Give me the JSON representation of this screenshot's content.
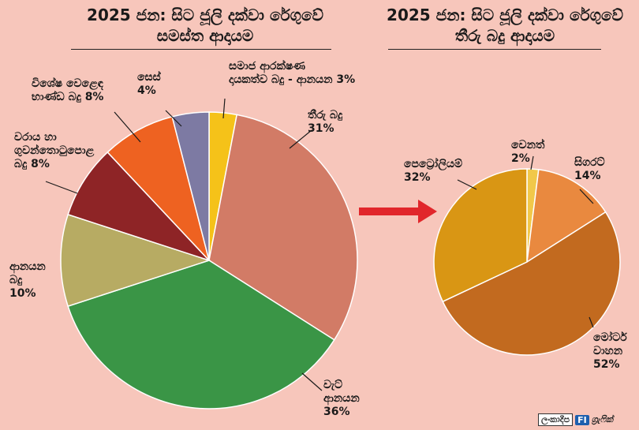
{
  "titles": {
    "left": {
      "line1": "2025 ජන: සිට ජූලි දක්වා රේගුවේ",
      "line2": "සමස්ත ආදායම"
    },
    "right": {
      "line1": "2025 ජන: සිට ජූලි දක්වා රේගුවේ",
      "line2": "තීරු බදු ආදායම"
    }
  },
  "footer": {
    "brand": "ලංකාදීප",
    "fi": "FI",
    "graphic": "ග්‍රැෆික්"
  },
  "chart_data": [
    {
      "type": "pie",
      "title": "2025 ජන: සිට ජූලි දක්වා රේගුවේ සමස්ත ආදායම",
      "slices": [
        {
          "label_lines": [
            "සමාජ ආරක්ෂණ",
            "දායකත්ව බදු - ආනයන 3%"
          ],
          "value": 3,
          "color": "#f5c219"
        },
        {
          "label_lines": [
            "තීරු බදු",
            "31%"
          ],
          "value": 31,
          "color": "#d27b66"
        },
        {
          "label_lines": [
            "වැට්",
            "ආනයන",
            "36%"
          ],
          "value": 36,
          "color": "#3a9546"
        },
        {
          "label_lines": [
            "ආනයන",
            "බදු",
            "10%"
          ],
          "value": 10,
          "color": "#b7ab63"
        },
        {
          "label_lines": [
            "වරාය හා",
            "ගුවන්තොටුපොළ",
            "බදු 8%"
          ],
          "value": 8,
          "color": "#8e2426"
        },
        {
          "label_lines": [
            "විශේෂ වෙළෙඳ",
            "භාණ්ඩ බදු 8%"
          ],
          "value": 8,
          "color": "#ee6221"
        },
        {
          "label_lines": [
            "සෙස්",
            "4%"
          ],
          "value": 4,
          "color": "#7d7aa3"
        }
      ]
    },
    {
      "type": "pie",
      "title": "2025 ජන: සිට ජූලි දක්වා රේගුවේ තීරු බදු ආදායම",
      "slices": [
        {
          "label_lines": [
            "වෙනත්",
            "2%"
          ],
          "value": 2,
          "color": "#f1c84a"
        },
        {
          "label_lines": [
            "සිගරට්",
            "14%"
          ],
          "value": 14,
          "color": "#e9893f"
        },
        {
          "label_lines": [
            "මෝටර්",
            "වාහන",
            "52%"
          ],
          "value": 52,
          "color": "#c26a1f"
        },
        {
          "label_lines": [
            "පෙට්‍රෝලියම්",
            "32%"
          ],
          "value": 32,
          "color": "#d99614"
        }
      ]
    }
  ]
}
